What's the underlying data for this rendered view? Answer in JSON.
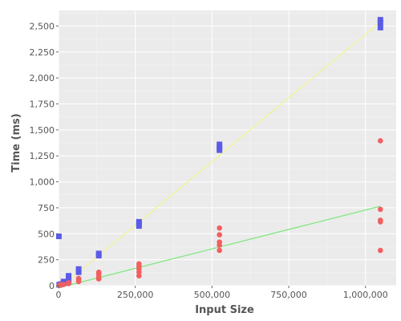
{
  "chart_data": {
    "type": "scatter",
    "xlabel": "Input Size",
    "ylabel": "Time (ms)",
    "xlim": [
      0,
      1100000
    ],
    "ylim": [
      0,
      2650
    ],
    "x_ticks": [
      0,
      250000,
      500000,
      750000,
      1000000
    ],
    "x_tick_labels": [
      "0",
      "250,000",
      "500,000",
      "750,000",
      "1,000,000"
    ],
    "y_ticks": [
      0,
      250,
      500,
      750,
      1000,
      1250,
      1500,
      1750,
      2000,
      2250,
      2500
    ],
    "y_tick_labels": [
      "0",
      "250",
      "500",
      "750",
      "1,000",
      "1,250",
      "1,500",
      "1,750",
      "2,000",
      "2,250",
      "2,500"
    ],
    "grid": true,
    "legend": "none",
    "background_color": "#EBEBEB",
    "grid_color": "#FFFFFF",
    "series": [
      {
        "color": "#5B5BE8",
        "marker": "square",
        "points": [
          [
            1024,
            475
          ],
          [
            2048,
            8
          ],
          [
            4096,
            10
          ],
          [
            8192,
            15
          ],
          [
            16384,
            25
          ],
          [
            16384,
            40
          ],
          [
            32768,
            70
          ],
          [
            32768,
            95
          ],
          [
            32768,
            35
          ],
          [
            65536,
            160
          ],
          [
            65536,
            130
          ],
          [
            131072,
            310
          ],
          [
            131072,
            290
          ],
          [
            262144,
            615
          ],
          [
            262144,
            600
          ],
          [
            262144,
            575
          ],
          [
            524288,
            1360
          ],
          [
            524288,
            1330
          ],
          [
            524288,
            1305
          ],
          [
            1048576,
            2560
          ],
          [
            1048576,
            2530
          ],
          [
            1048576,
            2485
          ]
        ],
        "trend": {
          "x": [
            0,
            1048576
          ],
          "y": [
            -30,
            2540
          ],
          "color": "#F2F29A"
        }
      },
      {
        "color": "#F25F5F",
        "marker": "circle",
        "points": [
          [
            2048,
            3
          ],
          [
            4096,
            5
          ],
          [
            8192,
            8
          ],
          [
            16384,
            12
          ],
          [
            32768,
            20
          ],
          [
            32768,
            30
          ],
          [
            65536,
            40
          ],
          [
            65536,
            55
          ],
          [
            65536,
            70
          ],
          [
            131072,
            65
          ],
          [
            131072,
            85
          ],
          [
            131072,
            110
          ],
          [
            131072,
            130
          ],
          [
            262144,
            95
          ],
          [
            262144,
            130
          ],
          [
            262144,
            160
          ],
          [
            262144,
            185
          ],
          [
            262144,
            210
          ],
          [
            524288,
            340
          ],
          [
            524288,
            390
          ],
          [
            524288,
            420
          ],
          [
            524288,
            490
          ],
          [
            524288,
            555
          ],
          [
            1048576,
            340
          ],
          [
            1048576,
            615
          ],
          [
            1048576,
            630
          ],
          [
            1048576,
            735
          ],
          [
            1048576,
            1395
          ]
        ],
        "trend": {
          "x": [
            0,
            1048576
          ],
          "y": [
            -20,
            765
          ],
          "color": "#7FE87F"
        }
      }
    ]
  }
}
